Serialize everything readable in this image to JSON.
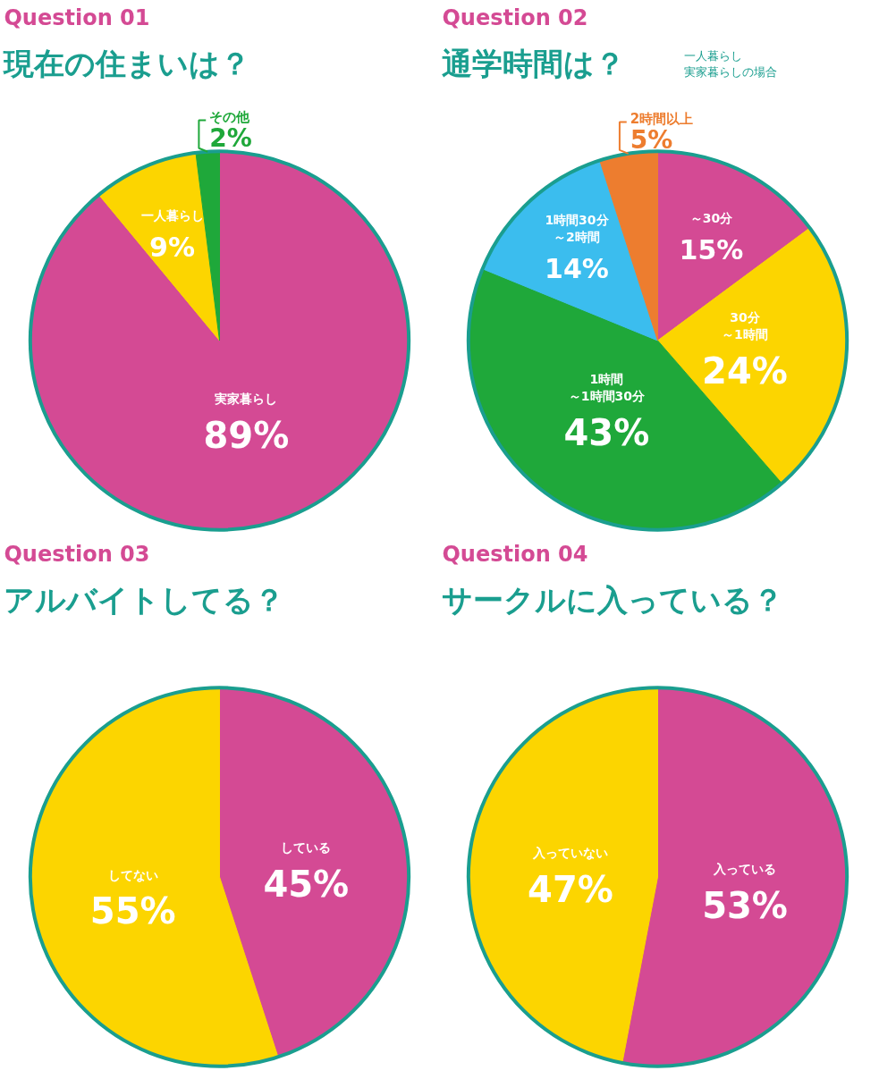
{
  "chart_data": [
    {
      "type": "pie",
      "title": "Question 01",
      "subtitle": "現在の住まいは？",
      "categories": [
        "実家暮らし",
        "一人暮らし",
        "その他"
      ],
      "values": [
        89,
        9,
        2
      ],
      "value_labels": [
        "89%",
        "9%",
        "2%"
      ],
      "colors": [
        "#d44a94",
        "#fcd500",
        "#1fa83a"
      ]
    },
    {
      "type": "pie",
      "title": "Question 02",
      "subtitle": "通学時間は？",
      "annotations": [
        "一人暮らし",
        "実家暮らしの場合"
      ],
      "categories": [
        "～30分",
        "30分～1時間",
        "1時間～1時間30分",
        "1時間30分～2時間",
        "2時間以上"
      ],
      "values": [
        15,
        24,
        43,
        14,
        5
      ],
      "value_labels": [
        "15%",
        "24%",
        "43%",
        "14%",
        "5%"
      ],
      "colors": [
        "#d44a94",
        "#fcd500",
        "#1fa83a",
        "#3bbdee",
        "#ed7d2f"
      ]
    },
    {
      "type": "pie",
      "title": "Question 03",
      "subtitle": "アルバイトしてる？",
      "categories": [
        "している",
        "してない"
      ],
      "values": [
        45,
        55
      ],
      "value_labels": [
        "45%",
        "55%"
      ],
      "colors": [
        "#d44a94",
        "#fcd500"
      ]
    },
    {
      "type": "pie",
      "title": "Question 04",
      "subtitle": "サークルに入っている？",
      "categories": [
        "入っている",
        "入っていない"
      ],
      "values": [
        53,
        47
      ],
      "value_labels": [
        "53%",
        "47%"
      ],
      "colors": [
        "#d44a94",
        "#fcd500"
      ]
    }
  ]
}
